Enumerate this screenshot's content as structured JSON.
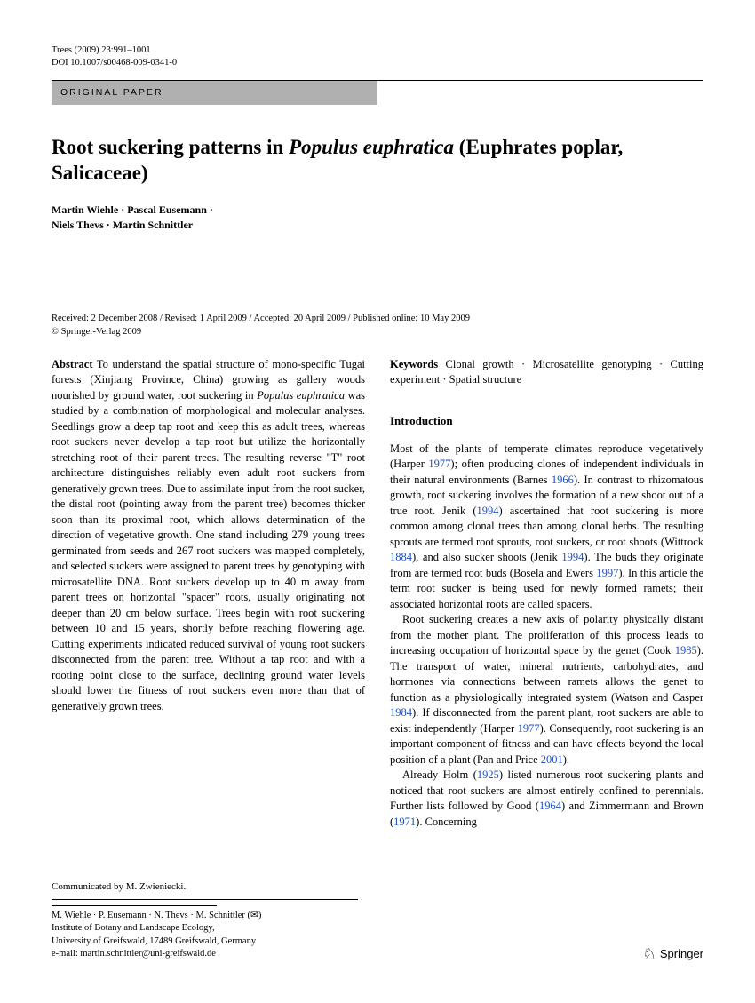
{
  "header": {
    "journal_line": "Trees (2009) 23:991–1001",
    "doi_line": "DOI 10.1007/s00468-009-0341-0"
  },
  "article_type": "ORIGINAL PAPER",
  "title_pre": "Root suckering patterns in ",
  "title_italic": "Populus euphratica",
  "title_post": " (Euphrates poplar, Salicaceae)",
  "authors_line1": "Martin Wiehle · Pascal Eusemann ·",
  "authors_line2": "Niels Thevs · Martin Schnittler",
  "dates_line1": "Received: 2 December 2008 / Revised: 1 April 2009 / Accepted: 20 April 2009 / Published online: 10 May 2009",
  "dates_line2": "© Springer-Verlag 2009",
  "abstract": {
    "label": "Abstract",
    "text_pre": "  To understand the spatial structure of mono-specific Tugai forests (Xinjiang Province, China) growing as gallery woods nourished by ground water, root suckering in ",
    "italic": "Populus euphratica",
    "text_post": " was studied by a combination of morphological and molecular analyses. Seedlings grow a deep tap root and keep this as adult trees, whereas root suckers never develop a tap root but utilize the horizontally stretching root of their parent trees. The resulting reverse \"T\" root architecture distinguishes reliably even adult root suckers from generatively grown trees. Due to assimilate input from the root sucker, the distal root (pointing away from the parent tree) becomes thicker soon than its proximal root, which allows determination of the direction of vegetative growth. One stand including 279 young trees germinated from seeds and 267 root suckers was mapped completely, and selected suckers were assigned to parent trees by genotyping with microsatellite DNA. Root suckers develop up to 40 m away from parent trees on horizontal \"spacer\" roots, usually originating not deeper than 20 cm below surface. Trees begin with root suckering between 10 and 15 years, shortly before reaching flowering age. Cutting experiments indicated reduced survival of young root suckers disconnected from the parent tree. Without a tap root and with a rooting point close to the surface, declining ground water levels should lower the fitness of root suckers even more than that of generatively grown trees."
  },
  "keywords": {
    "label": "Keywords",
    "text": "  Clonal growth · Microsatellite genotyping · Cutting experiment · Spatial structure"
  },
  "introduction": {
    "heading": "Introduction",
    "p1a": "Most of the plants of temperate climates reproduce vegetatively (Harper ",
    "y1977a": "1977",
    "p1b": "); often producing clones of independent individuals in their natural environments (Barnes ",
    "y1966": "1966",
    "p1c": "). In contrast to rhizomatous growth, root suckering involves the formation of a new shoot out of a true root. Jenik (",
    "y1994a": "1994",
    "p1d": ") ascertained that root suckering is more common among clonal trees than among clonal herbs. The resulting sprouts are termed root sprouts, root suckers, or root shoots (Wittrock ",
    "y1884": "1884",
    "p1e": "), and also sucker shoots (Jenik ",
    "y1994b": "1994",
    "p1f": "). The buds they originate from are termed root buds (Bosela and Ewers ",
    "y1997": "1997",
    "p1g": "). In this article the term root sucker is being used for newly formed ramets; their associated horizontal roots are called spacers.",
    "p2a": "Root suckering creates a new axis of polarity physically distant from the mother plant. The proliferation of this process leads to increasing occupation of horizontal space by the genet (Cook ",
    "y1985": "1985",
    "p2b": "). The transport of water, mineral nutrients, carbohydrates, and hormones via connections between ramets allows the genet to function as a physiologically integrated system (Watson and Casper ",
    "y1984": "1984",
    "p2c": "). If disconnected from the parent plant, root suckers are able to exist independently (Harper ",
    "y1977b": "1977",
    "p2d": "). Consequently, root suckering is an important component of fitness and can have effects beyond the local position of a plant (Pan and Price ",
    "y2001": "2001",
    "p2e": ").",
    "p3a": "Already Holm (",
    "y1925": "1925",
    "p3b": ") listed numerous root suckering plants and noticed that root suckers are almost entirely confined to perennials. Further lists followed by Good (",
    "y1964": "1964",
    "p3c": ") and Zimmermann and Brown (",
    "y1971": "1971",
    "p3d": "). Concerning"
  },
  "footer": {
    "communicated": "Communicated by M. Zwieniecki.",
    "authors_affil": "M. Wiehle · P. Eusemann · N. Thevs · M. Schnittler (✉)",
    "institute": "Institute of Botany and Landscape Ecology,",
    "university": "University of Greifswald, 17489 Greifswald, Germany",
    "email": "e-mail: martin.schnittler@uni-greifswald.de"
  },
  "publisher": "Springer"
}
